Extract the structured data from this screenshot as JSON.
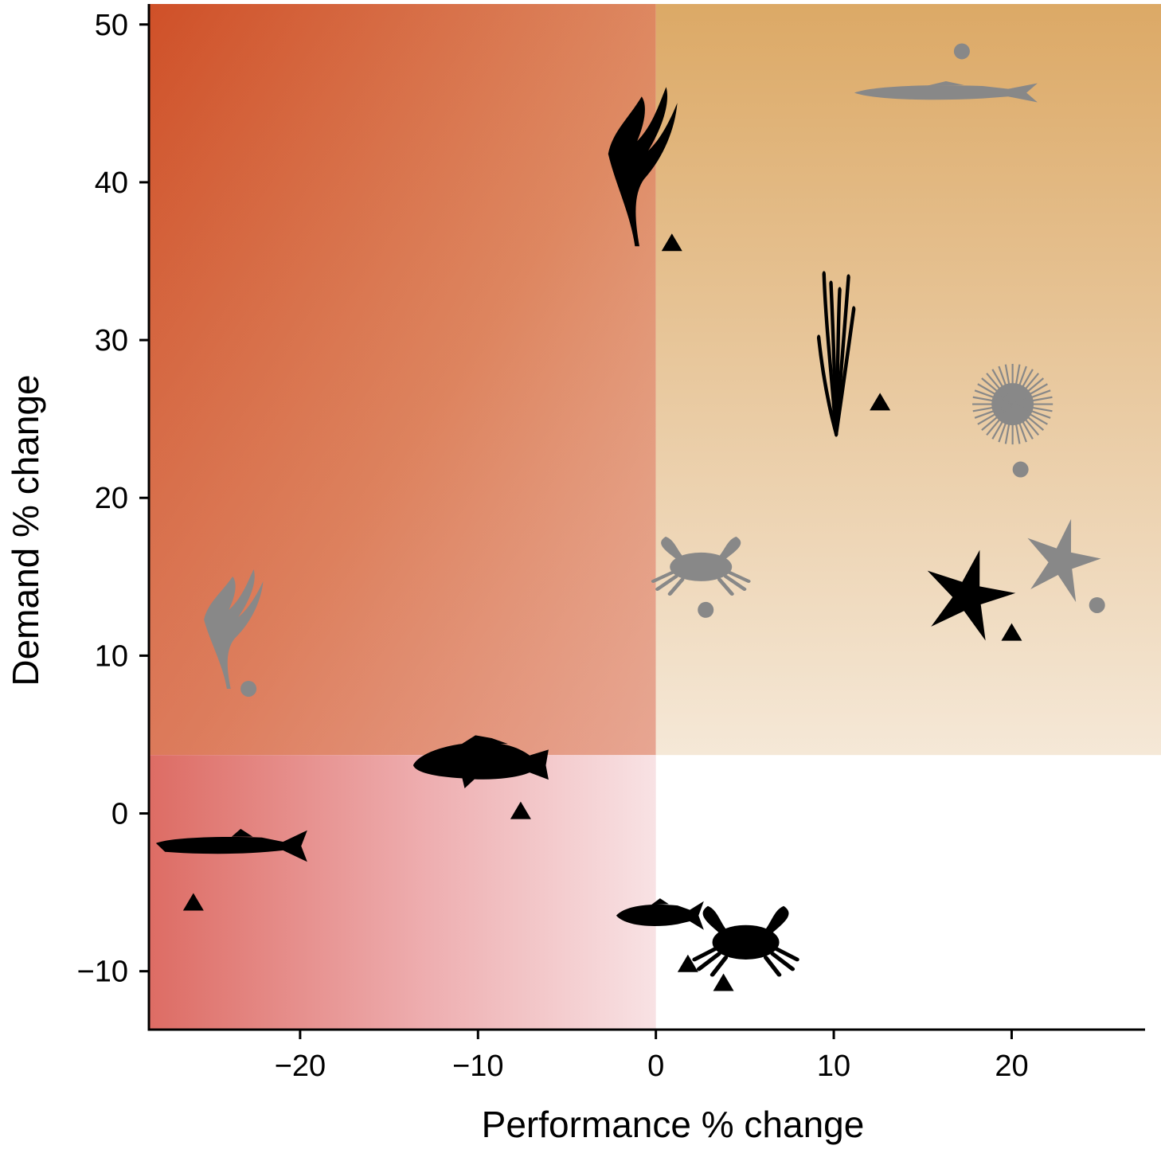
{
  "chart_data": {
    "type": "scatter",
    "xlabel": "Performance % change",
    "ylabel": "Demand % change",
    "xlim": [
      -28.5,
      27.5
    ],
    "ylim": [
      -13.7,
      51.3
    ],
    "xticks": [
      -20,
      -10,
      0,
      10,
      20
    ],
    "yticks": [
      -10,
      0,
      10,
      20,
      30,
      40,
      50
    ],
    "grid": false,
    "legend": "none",
    "colors": {
      "marker_triangle": "#000000",
      "marker_circle": "#888888",
      "silhouette_dark": "#000000",
      "silhouette_grey": "#888888",
      "region_top_left": "#cf5028",
      "region_top_right": "#dca966",
      "region_bottom_left": "#dd6c64",
      "region_bottom_left_faded": "#f7dfe1"
    },
    "series": [
      {
        "marker": "triangle",
        "color": "#000000",
        "points": [
          {
            "x": 0.9,
            "y": 36.2,
            "icon": "kelp-icon"
          },
          {
            "x": 12.6,
            "y": 26.1,
            "icon": "seagrass-icon"
          },
          {
            "x": 20.0,
            "y": 11.5,
            "icon": "sea-star-icon"
          },
          {
            "x": -7.6,
            "y": 0.2,
            "icon": "rockfish-icon"
          },
          {
            "x": -26.0,
            "y": -5.6,
            "icon": "salmon-icon"
          },
          {
            "x": 1.8,
            "y": -9.5,
            "icon": "fish-icon"
          },
          {
            "x": 3.8,
            "y": -10.7,
            "icon": "crab-icon"
          }
        ]
      },
      {
        "marker": "circle",
        "color": "#888888",
        "points": [
          {
            "x": 17.2,
            "y": 48.3,
            "icon": "fish-icon"
          },
          {
            "x": 20.5,
            "y": 21.8,
            "icon": "sea-urchin-icon"
          },
          {
            "x": 2.8,
            "y": 12.9,
            "icon": "crab-icon"
          },
          {
            "x": 24.8,
            "y": 13.2,
            "icon": "sea-star-icon"
          },
          {
            "x": -22.9,
            "y": 7.9,
            "icon": "kelp-icon"
          }
        ]
      }
    ]
  }
}
